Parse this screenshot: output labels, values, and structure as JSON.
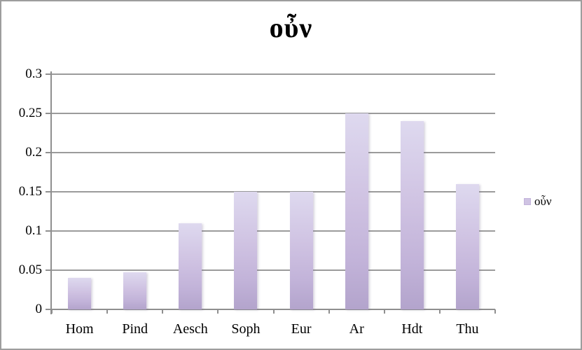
{
  "title": "οὖν",
  "legend": {
    "label": "οὖν"
  },
  "chart_data": {
    "type": "bar",
    "title": "οὖν",
    "categories": [
      "Hom",
      "Pind",
      "Aesch",
      "Soph",
      "Eur",
      "Ar",
      "Hdt",
      "Thu"
    ],
    "series": [
      {
        "name": "οὖν",
        "values": [
          0.04,
          0.047,
          0.11,
          0.15,
          0.15,
          0.25,
          0.24,
          0.16
        ]
      }
    ],
    "xlabel": "",
    "ylabel": "",
    "ylim": [
      0,
      0.3
    ],
    "ytick_step": 0.05,
    "ytick_labels": [
      "0",
      "0.05",
      "0.1",
      "0.15",
      "0.2",
      "0.25",
      "0.3"
    ],
    "grid": true,
    "legend_position": "right",
    "colors": {
      "bar_gradient_top": "#ded9ef",
      "bar_gradient_bottom": "#b3a4cc",
      "legend_swatch": "#cfc3e3",
      "gridline": "#9b9b9b",
      "axis": "#8f8f8f",
      "border": "#9d9d9d",
      "text": "#000000",
      "background": "#ffffff"
    }
  }
}
